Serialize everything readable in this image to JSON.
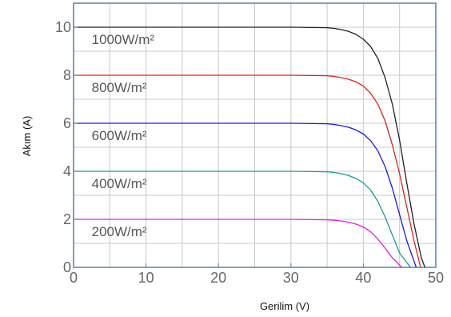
{
  "chart_data": {
    "type": "line",
    "title": "",
    "xlabel": "Gerilim (V)",
    "ylabel": "Akım (A)",
    "xlim": [
      0,
      50
    ],
    "ylim": [
      0,
      11
    ],
    "x_ticks": [
      0,
      10,
      20,
      30,
      40,
      50
    ],
    "y_ticks": [
      0,
      2,
      4,
      6,
      8,
      10
    ],
    "x_tick_labels": [
      "0",
      "10",
      "20",
      "30",
      "40",
      "50"
    ],
    "y_tick_labels": [
      "0",
      "2",
      "4",
      "6",
      "8",
      "10"
    ],
    "grid": true,
    "legend": "none",
    "series": [
      {
        "name": "1000W/m²",
        "color": "#222222",
        "x": [
          0,
          5,
          10,
          15,
          20,
          25,
          30,
          35,
          36,
          37,
          38,
          39,
          40,
          41,
          42,
          43,
          44,
          45,
          46,
          47,
          48,
          48.5
        ],
        "y": [
          10.0,
          10.0,
          10.0,
          10.0,
          10.0,
          10.0,
          10.0,
          9.98,
          9.95,
          9.9,
          9.82,
          9.7,
          9.5,
          9.2,
          8.7,
          7.9,
          6.8,
          5.3,
          3.5,
          1.8,
          0.4,
          0
        ]
      },
      {
        "name": "800W/m²",
        "color": "#e02020",
        "x": [
          0,
          5,
          10,
          15,
          20,
          25,
          30,
          35,
          36,
          37,
          38,
          39,
          40,
          41,
          42,
          43,
          44,
          45,
          46,
          47,
          47.9
        ],
        "y": [
          8.0,
          8.0,
          8.0,
          8.0,
          8.0,
          8.0,
          8.0,
          7.98,
          7.95,
          7.9,
          7.83,
          7.72,
          7.55,
          7.25,
          6.8,
          6.1,
          5.1,
          3.9,
          2.5,
          1.1,
          0
        ]
      },
      {
        "name": "600W/m²",
        "color": "#1a1ae0",
        "x": [
          0,
          5,
          10,
          15,
          20,
          25,
          30,
          35,
          36,
          37,
          38,
          39,
          40,
          41,
          42,
          43,
          44,
          45,
          46,
          47.3
        ],
        "y": [
          6.0,
          6.0,
          6.0,
          6.0,
          6.0,
          6.0,
          6.0,
          5.98,
          5.95,
          5.9,
          5.83,
          5.72,
          5.55,
          5.28,
          4.85,
          4.2,
          3.3,
          2.2,
          1.1,
          0
        ]
      },
      {
        "name": "400W/m²",
        "color": "#1a9a94",
        "x": [
          0,
          5,
          10,
          15,
          20,
          25,
          30,
          35,
          36,
          37,
          38,
          39,
          40,
          41,
          42,
          43,
          44,
          45,
          46.5
        ],
        "y": [
          4.0,
          4.0,
          4.0,
          4.0,
          4.0,
          4.0,
          4.0,
          3.98,
          3.95,
          3.9,
          3.82,
          3.7,
          3.52,
          3.22,
          2.75,
          2.1,
          1.35,
          0.6,
          0
        ]
      },
      {
        "name": "200W/m²",
        "color": "#e020e0",
        "x": [
          0,
          5,
          10,
          15,
          20,
          25,
          30,
          35,
          36,
          37,
          38,
          39,
          40,
          41,
          42,
          43,
          44,
          45.3
        ],
        "y": [
          2.0,
          2.0,
          2.0,
          2.0,
          2.0,
          2.0,
          2.0,
          1.98,
          1.96,
          1.93,
          1.88,
          1.8,
          1.68,
          1.48,
          1.18,
          0.8,
          0.4,
          0
        ]
      }
    ],
    "annotations": [
      {
        "text": "1000W/m²",
        "x": 2.5,
        "y": 9.3
      },
      {
        "text": "800W/m²",
        "x": 2.5,
        "y": 7.3
      },
      {
        "text": "600W/m²",
        "x": 2.5,
        "y": 5.3
      },
      {
        "text": "400W/m²",
        "x": 2.5,
        "y": 3.3
      },
      {
        "text": "200W/m²",
        "x": 2.5,
        "y": 1.3
      }
    ]
  }
}
